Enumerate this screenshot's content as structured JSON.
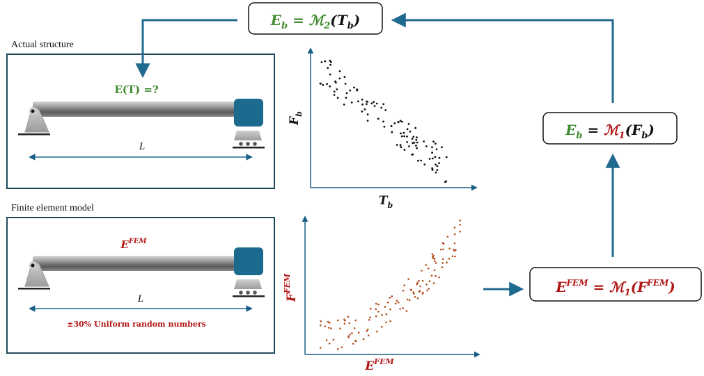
{
  "labels": {
    "actual_structure": "Actual structure",
    "finite_element_model": "Finite element model",
    "unknown_modulus": "E(T) =?",
    "length_top": "L",
    "length_bottom": "L",
    "e_fem_label": "E",
    "e_fem_sup": "FEM",
    "uniform_random": "±30% Uniform random numbers"
  },
  "formulas": {
    "top": {
      "lhs": "E",
      "lhs_sub": "b",
      "op": " = ",
      "model": "ℳ",
      "model_sub": "2",
      "arg": "T",
      "arg_sub": "b"
    },
    "right_middle": {
      "lhs": "E",
      "lhs_sub": "b",
      "op": " = ",
      "model": "ℳ",
      "model_sub": "1",
      "arg": "F",
      "arg_sub": "b"
    },
    "bottom_right": {
      "lhs": "E",
      "lhs_sup": "FEM",
      "op": " = ",
      "model": "ℳ",
      "model_sub": "1",
      "arg": "F",
      "arg_sup": "FEM"
    }
  },
  "plots": {
    "top": {
      "x_label": "T",
      "x_label_sub": "b",
      "y_label": "F",
      "y_label_sub": "b"
    },
    "bottom": {
      "x_label": "E",
      "x_label_sup": "FEM",
      "y_label": "F",
      "y_label_sup": "FEM"
    }
  },
  "colors": {
    "green": "#3f8b2e",
    "red": "#b01515",
    "teal": "#1f6a8f",
    "blue_dark": "#1a5f86",
    "box": "#204a5c",
    "black": "#111111",
    "scatter_red": "#b44a1a"
  },
  "icons": [
    "pin-support-icon",
    "roller-support-icon",
    "beam-icon"
  ]
}
